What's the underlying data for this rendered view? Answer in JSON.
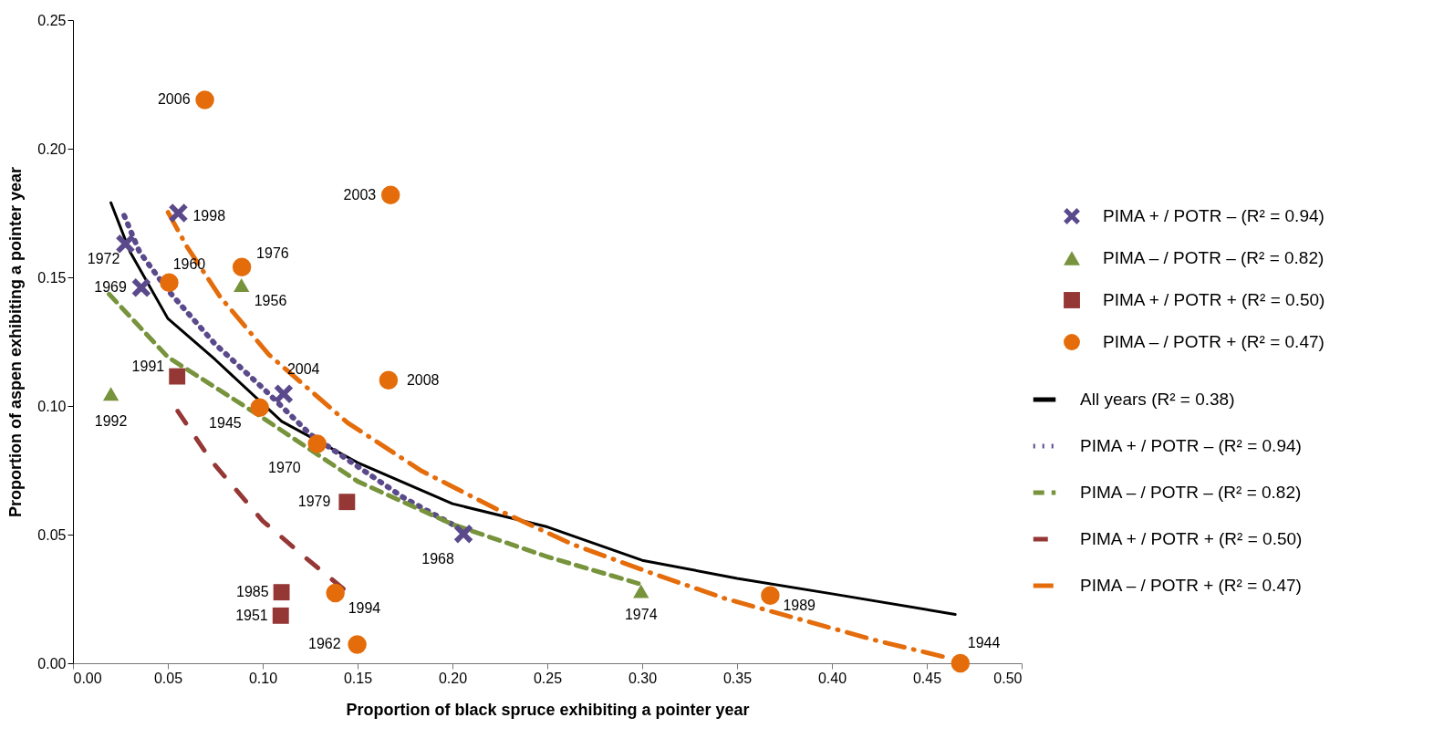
{
  "chart_data": {
    "type": "scatter",
    "xlabel": "Proportion of black spruce exhibiting a pointer year",
    "ylabel": "Proportion of aspen exhibiting a pointer year",
    "xlim": [
      0,
      0.5
    ],
    "ylim": [
      0,
      0.25
    ],
    "xticks": [
      {
        "value": 0,
        "label": "0.00"
      },
      {
        "value": 0.05,
        "label": "0.05"
      },
      {
        "value": 0.1,
        "label": "0.10"
      },
      {
        "value": 0.15,
        "label": "0.15"
      },
      {
        "value": 0.2,
        "label": "0.20"
      },
      {
        "value": 0.25,
        "label": "0.25"
      },
      {
        "value": 0.3,
        "label": "0.30"
      },
      {
        "value": 0.35,
        "label": "0.35"
      },
      {
        "value": 0.4,
        "label": "0.40"
      },
      {
        "value": 0.45,
        "label": "0.45"
      },
      {
        "value": 0.5,
        "label": "0.50"
      }
    ],
    "yticks": [
      {
        "value": 0,
        "label": "0.00"
      },
      {
        "value": 0.05,
        "label": "0.05"
      },
      {
        "value": 0.1,
        "label": "0.10"
      },
      {
        "value": 0.15,
        "label": "0.15"
      },
      {
        "value": 0.2,
        "label": "0.20"
      },
      {
        "value": 0.25,
        "label": "0.25"
      }
    ],
    "grid": false,
    "legend": "right",
    "series": [
      {
        "name": "PIMA + / POTR – (R² = 0.94)",
        "marker": "cross",
        "color": "#5b4a8b",
        "x": [
          0.0555,
          0.0276,
          0.036,
          0.111,
          0.2058
        ],
        "values": [
          0.175,
          0.163,
          0.146,
          0.1047,
          0.0503
        ]
      },
      {
        "name": "PIMA – / POTR – (R² = 0.82)",
        "marker": "triangle",
        "color": "#77933c",
        "x": [
          0.0888,
          0.02,
          0.2994
        ],
        "values": [
          0.147,
          0.1047,
          0.028
        ]
      },
      {
        "name": "PIMA + / POTR + (R² = 0.50)",
        "marker": "square",
        "color": "#953735",
        "x": [
          0.0549,
          0.1444,
          0.1099,
          0.1095
        ],
        "values": [
          0.1115,
          0.0627,
          0.0276,
          0.0185
        ]
      },
      {
        "name": "PIMA – / POTR + (R² = 0.47)",
        "marker": "circle",
        "color": "#e46c0a",
        "x": [
          0.0695,
          0.1674,
          0.0507,
          0.089,
          0.1663,
          0.0984,
          0.1287,
          0.1383,
          0.1498,
          0.3675,
          0.4677
        ],
        "values": [
          0.219,
          0.182,
          0.148,
          0.154,
          0.11,
          0.0994,
          0.0853,
          0.0273,
          0.0073,
          0.0263,
          0
        ]
      },
      {
        "name": "All years (R² = 0.38)",
        "type": "line",
        "line_style": "solid",
        "color": "#000000",
        "x": [
          0.02,
          0.03,
          0.05,
          0.075,
          0.11,
          0.15,
          0.2,
          0.25,
          0.3,
          0.35,
          0.4,
          0.465
        ],
        "values": [
          0.179,
          0.16,
          0.134,
          0.118,
          0.094,
          0.078,
          0.062,
          0.053,
          0.04,
          0.033,
          0.027,
          0.019
        ]
      },
      {
        "name": "PIMA + / POTR – (R² = 0.94)",
        "type": "line",
        "line_style": "dotted",
        "color": "#5b4a8b",
        "x": [
          0.027,
          0.035,
          0.05,
          0.075,
          0.1,
          0.125,
          0.15,
          0.175,
          0.205
        ],
        "values": [
          0.174,
          0.16,
          0.145,
          0.124,
          0.107,
          0.089,
          0.0765,
          0.064,
          0.052
        ]
      },
      {
        "name": "PIMA – / POTR – (R² = 0.82)",
        "type": "line",
        "line_style": "dashed",
        "color": "#77933c",
        "x": [
          0.019,
          0.05,
          0.1,
          0.15,
          0.2,
          0.25,
          0.298
        ],
        "values": [
          0.1435,
          0.119,
          0.0954,
          0.0707,
          0.054,
          0.0414,
          0.031
        ]
      },
      {
        "name": "PIMA + / POTR + (R² = 0.50)",
        "type": "line",
        "line_style": "dashed",
        "color": "#953735",
        "x": [
          0.0552,
          0.0728,
          0.1,
          0.1223,
          0.1447
        ],
        "values": [
          0.098,
          0.0788,
          0.0553,
          0.0412,
          0.0276
        ]
      },
      {
        "name": "PIMA – / POTR + (R² = 0.47)",
        "type": "line",
        "line_style": "dashed",
        "color": "#e46c0a",
        "x": [
          0.0501,
          0.06,
          0.0776,
          0.1032,
          0.1447,
          0.1838,
          0.2246,
          0.263,
          0.3051,
          0.3434,
          0.4231,
          0.4624
        ],
        "values": [
          0.1753,
          0.162,
          0.1424,
          0.12,
          0.0935,
          0.0747,
          0.0594,
          0.0463,
          0.035,
          0.0252,
          0.0089,
          0.0019
        ]
      }
    ],
    "annotations": [
      {
        "text": "2006",
        "x": 0.0695,
        "y": 0.219
      },
      {
        "text": "1998",
        "x": 0.0555,
        "y": 0.175
      },
      {
        "text": "1972",
        "x": 0.0276,
        "y": 0.163
      },
      {
        "text": "1969",
        "x": 0.036,
        "y": 0.146
      },
      {
        "text": "1960",
        "x": 0.0507,
        "y": 0.148
      },
      {
        "text": "1976",
        "x": 0.089,
        "y": 0.154
      },
      {
        "text": "1956",
        "x": 0.0888,
        "y": 0.147
      },
      {
        "text": "2003",
        "x": 0.1674,
        "y": 0.182
      },
      {
        "text": "1991",
        "x": 0.0549,
        "y": 0.1115
      },
      {
        "text": "1992",
        "x": 0.02,
        "y": 0.1047
      },
      {
        "text": "2004",
        "x": 0.111,
        "y": 0.1047
      },
      {
        "text": "2008",
        "x": 0.1663,
        "y": 0.11
      },
      {
        "text": "1945",
        "x": 0.0984,
        "y": 0.0994
      },
      {
        "text": "1970",
        "x": 0.1287,
        "y": 0.0853
      },
      {
        "text": "1979",
        "x": 0.1444,
        "y": 0.0627
      },
      {
        "text": "1968",
        "x": 0.2058,
        "y": 0.0503
      },
      {
        "text": "1985",
        "x": 0.1099,
        "y": 0.0276
      },
      {
        "text": "1951",
        "x": 0.1095,
        "y": 0.0185
      },
      {
        "text": "1994",
        "x": 0.1383,
        "y": 0.0273
      },
      {
        "text": "1962",
        "x": 0.1498,
        "y": 0.0073
      },
      {
        "text": "1974",
        "x": 0.2994,
        "y": 0.028
      },
      {
        "text": "1989",
        "x": 0.3675,
        "y": 0.0263
      },
      {
        "text": "1944",
        "x": 0.4677,
        "y": 0
      }
    ]
  }
}
